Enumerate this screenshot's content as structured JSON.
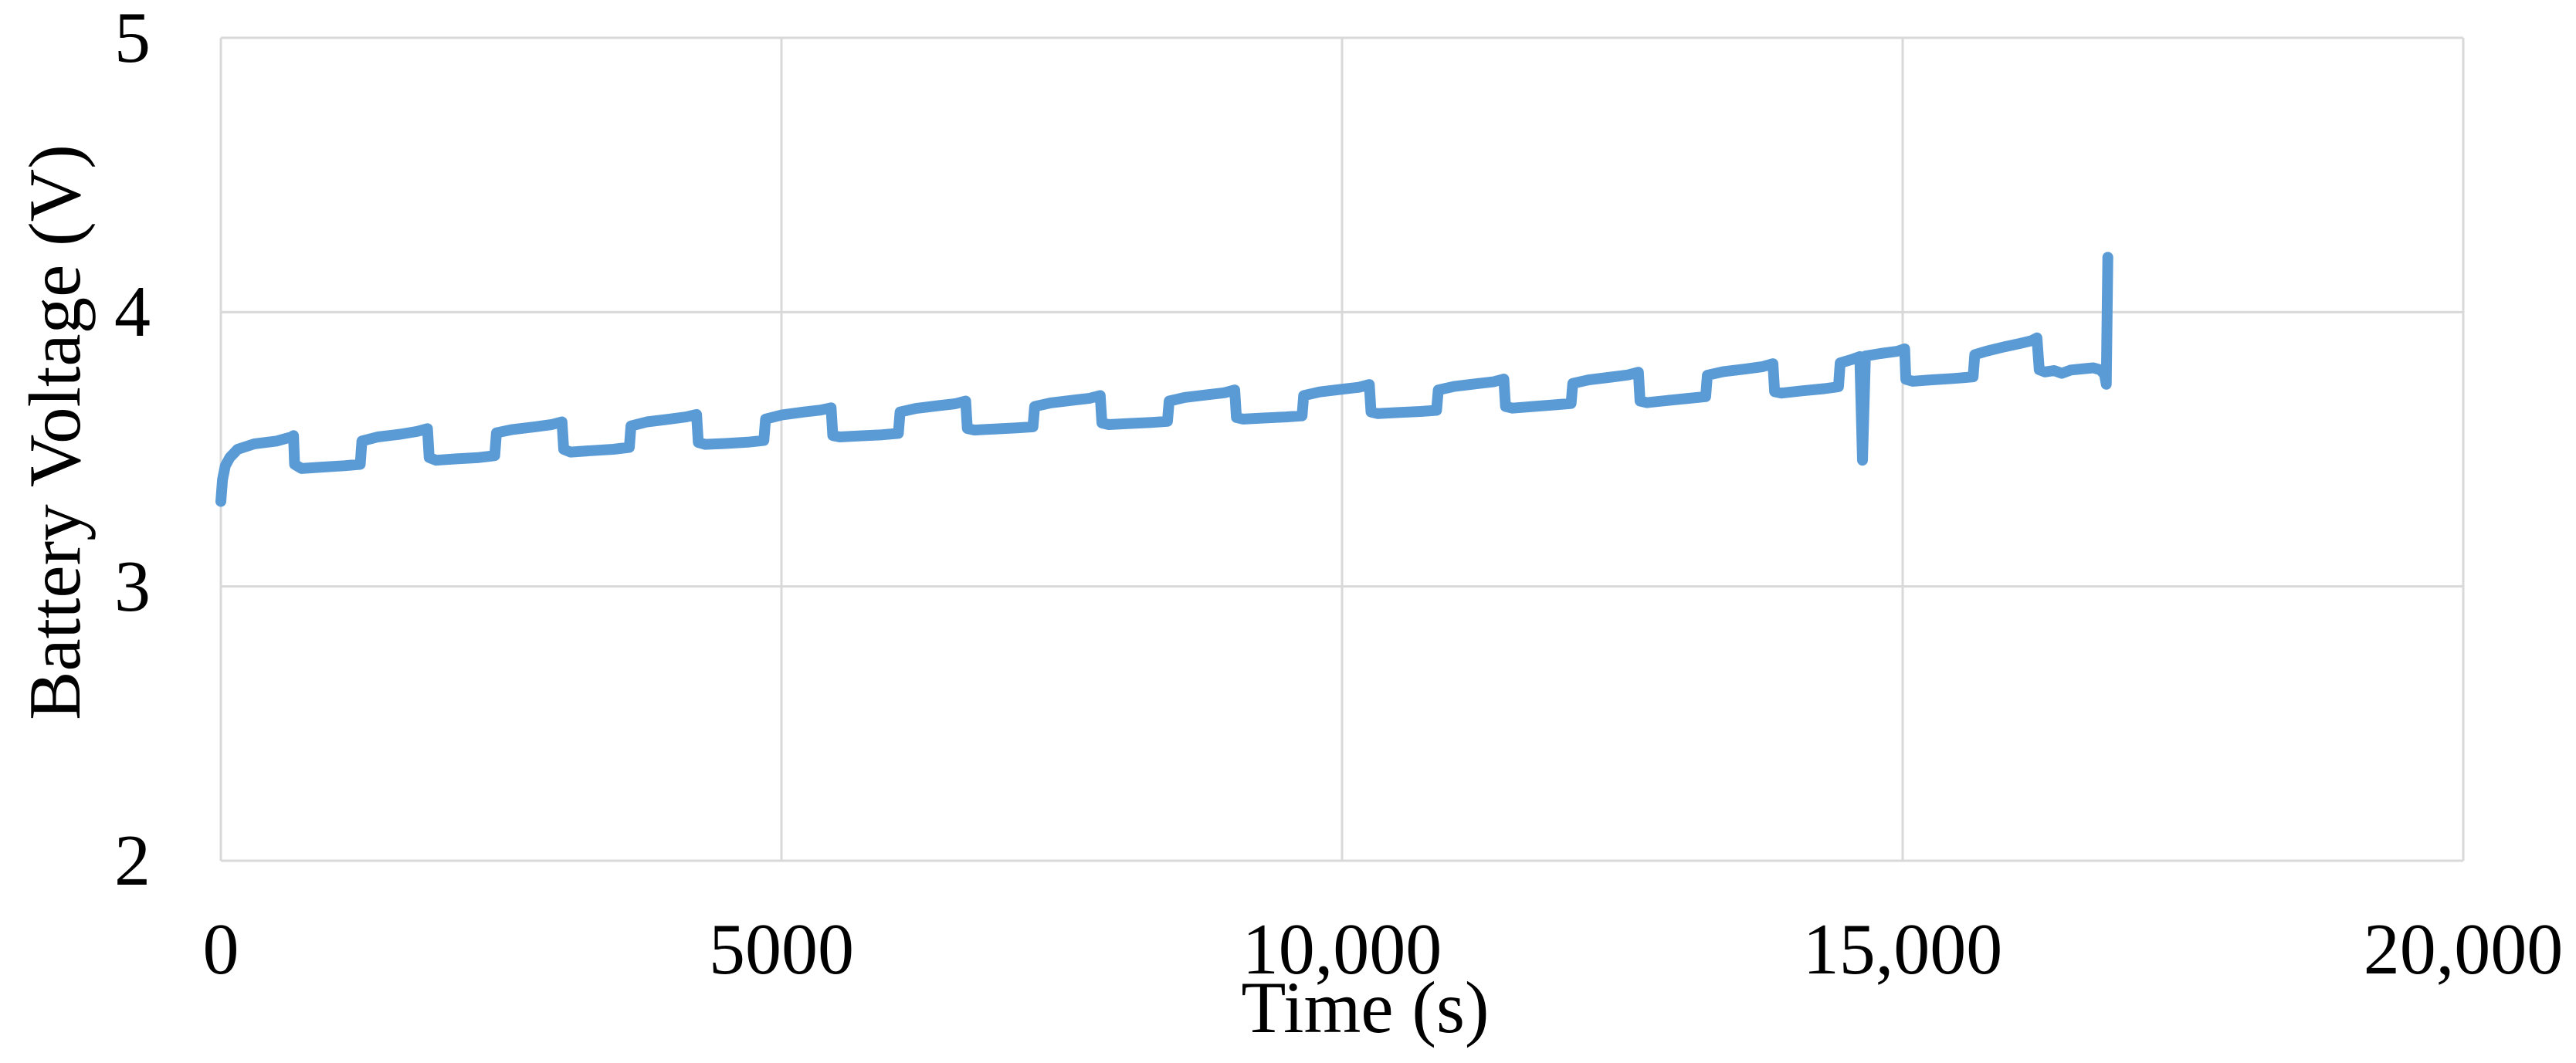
{
  "figure": {
    "background_color": "#FFFFFF",
    "text_color": "#000000",
    "grid_color": "#D9D9D9",
    "axis_line_color": "#E4E4E4",
    "line_color": "#5B9BD5"
  },
  "chart_data": {
    "type": "line",
    "title": "",
    "xlabel": "Time (s)",
    "ylabel": "Battery Voltage (V)",
    "xlim": [
      0,
      20000
    ],
    "ylim": [
      2,
      5
    ],
    "grid": true,
    "legend": false,
    "xticks": [
      {
        "value": 0,
        "label": "0"
      },
      {
        "value": 5000,
        "label": "5000"
      },
      {
        "value": 10000,
        "label": "10,000"
      },
      {
        "value": 15000,
        "label": "15,000"
      },
      {
        "value": 20000,
        "label": "20,000"
      }
    ],
    "yticks": [
      {
        "value": 2,
        "label": "2"
      },
      {
        "value": 3,
        "label": "3"
      },
      {
        "value": 4,
        "label": "4"
      },
      {
        "value": 5,
        "label": "5"
      }
    ],
    "series": [
      {
        "name": "Battery Voltage",
        "color": "#5B9BD5",
        "stroke_width": 14,
        "points": [
          [
            0,
            3.31
          ],
          [
            15,
            3.39
          ],
          [
            40,
            3.44
          ],
          [
            80,
            3.47
          ],
          [
            150,
            3.5
          ],
          [
            300,
            3.52
          ],
          [
            500,
            3.53
          ],
          [
            630,
            3.545
          ],
          [
            648,
            3.55
          ],
          [
            658,
            3.445
          ],
          [
            720,
            3.43
          ],
          [
            900,
            3.435
          ],
          [
            1100,
            3.44
          ],
          [
            1243,
            3.445
          ],
          [
            1258,
            3.53
          ],
          [
            1400,
            3.545
          ],
          [
            1600,
            3.555
          ],
          [
            1750,
            3.565
          ],
          [
            1843,
            3.575
          ],
          [
            1858,
            3.47
          ],
          [
            1920,
            3.46
          ],
          [
            2100,
            3.465
          ],
          [
            2300,
            3.47
          ],
          [
            2443,
            3.477
          ],
          [
            2458,
            3.56
          ],
          [
            2600,
            3.572
          ],
          [
            2800,
            3.582
          ],
          [
            2950,
            3.59
          ],
          [
            3043,
            3.6
          ],
          [
            3058,
            3.5
          ],
          [
            3120,
            3.49
          ],
          [
            3300,
            3.495
          ],
          [
            3500,
            3.5
          ],
          [
            3643,
            3.507
          ],
          [
            3658,
            3.585
          ],
          [
            3800,
            3.6
          ],
          [
            4000,
            3.61
          ],
          [
            4150,
            3.618
          ],
          [
            4243,
            3.627
          ],
          [
            4258,
            3.525
          ],
          [
            4320,
            3.518
          ],
          [
            4500,
            3.521
          ],
          [
            4700,
            3.526
          ],
          [
            4843,
            3.532
          ],
          [
            4858,
            3.61
          ],
          [
            5000,
            3.625
          ],
          [
            5200,
            3.636
          ],
          [
            5350,
            3.643
          ],
          [
            5443,
            3.651
          ],
          [
            5458,
            3.55
          ],
          [
            5520,
            3.545
          ],
          [
            5700,
            3.549
          ],
          [
            5900,
            3.553
          ],
          [
            6043,
            3.558
          ],
          [
            6058,
            3.636
          ],
          [
            6200,
            3.649
          ],
          [
            6400,
            3.659
          ],
          [
            6550,
            3.666
          ],
          [
            6643,
            3.676
          ],
          [
            6658,
            3.576
          ],
          [
            6720,
            3.57
          ],
          [
            6900,
            3.574
          ],
          [
            7100,
            3.578
          ],
          [
            7243,
            3.582
          ],
          [
            7258,
            3.656
          ],
          [
            7400,
            3.669
          ],
          [
            7600,
            3.679
          ],
          [
            7750,
            3.686
          ],
          [
            7843,
            3.696
          ],
          [
            7858,
            3.596
          ],
          [
            7920,
            3.59
          ],
          [
            8100,
            3.594
          ],
          [
            8300,
            3.598
          ],
          [
            8443,
            3.602
          ],
          [
            8458,
            3.676
          ],
          [
            8600,
            3.689
          ],
          [
            8800,
            3.699
          ],
          [
            8950,
            3.706
          ],
          [
            9043,
            3.716
          ],
          [
            9058,
            3.616
          ],
          [
            9120,
            3.61
          ],
          [
            9300,
            3.614
          ],
          [
            9500,
            3.618
          ],
          [
            9643,
            3.622
          ],
          [
            9658,
            3.696
          ],
          [
            9800,
            3.709
          ],
          [
            10000,
            3.719
          ],
          [
            10150,
            3.726
          ],
          [
            10243,
            3.736
          ],
          [
            10258,
            3.636
          ],
          [
            10320,
            3.63
          ],
          [
            10500,
            3.634
          ],
          [
            10700,
            3.638
          ],
          [
            10843,
            3.642
          ],
          [
            10858,
            3.716
          ],
          [
            11000,
            3.729
          ],
          [
            11200,
            3.739
          ],
          [
            11350,
            3.746
          ],
          [
            11443,
            3.756
          ],
          [
            11458,
            3.656
          ],
          [
            11520,
            3.65
          ],
          [
            11700,
            3.656
          ],
          [
            11900,
            3.662
          ],
          [
            12043,
            3.667
          ],
          [
            12058,
            3.74
          ],
          [
            12200,
            3.753
          ],
          [
            12400,
            3.763
          ],
          [
            12550,
            3.771
          ],
          [
            12643,
            3.781
          ],
          [
            12658,
            3.676
          ],
          [
            12720,
            3.67
          ],
          [
            12900,
            3.678
          ],
          [
            13100,
            3.686
          ],
          [
            13243,
            3.692
          ],
          [
            13258,
            3.77
          ],
          [
            13400,
            3.783
          ],
          [
            13600,
            3.793
          ],
          [
            13750,
            3.801
          ],
          [
            13843,
            3.812
          ],
          [
            13858,
            3.71
          ],
          [
            13920,
            3.705
          ],
          [
            14100,
            3.713
          ],
          [
            14300,
            3.721
          ],
          [
            14428,
            3.728
          ],
          [
            14443,
            3.815
          ],
          [
            14550,
            3.828
          ],
          [
            14618,
            3.838
          ],
          [
            14642,
            3.46
          ],
          [
            14668,
            3.84
          ],
          [
            14800,
            3.849
          ],
          [
            14950,
            3.857
          ],
          [
            15018,
            3.866
          ],
          [
            15028,
            3.755
          ],
          [
            15090,
            3.748
          ],
          [
            15250,
            3.753
          ],
          [
            15450,
            3.758
          ],
          [
            15628,
            3.764
          ],
          [
            15643,
            3.845
          ],
          [
            15750,
            3.858
          ],
          [
            15900,
            3.873
          ],
          [
            16050,
            3.886
          ],
          [
            16150,
            3.896
          ],
          [
            16198,
            3.906
          ],
          [
            16218,
            3.79
          ],
          [
            16270,
            3.782
          ],
          [
            16350,
            3.787
          ],
          [
            16420,
            3.777
          ],
          [
            16500,
            3.789
          ],
          [
            16600,
            3.793
          ],
          [
            16700,
            3.797
          ],
          [
            16762,
            3.79
          ],
          [
            16800,
            3.773
          ],
          [
            16816,
            3.737
          ],
          [
            16830,
            4.2
          ]
        ]
      }
    ]
  }
}
